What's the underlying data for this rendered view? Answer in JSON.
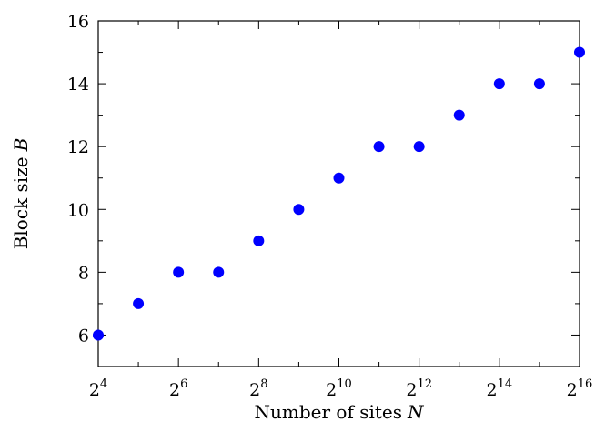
{
  "chart_data": {
    "type": "scatter",
    "xlabel": "Number of sites",
    "xlabel_var": "N",
    "ylabel": "Block size",
    "ylabel_var": "B",
    "x_scale": "log2",
    "x": [
      16,
      32,
      64,
      128,
      256,
      512,
      1024,
      2048,
      4096,
      8192,
      16384,
      32768,
      65536
    ],
    "y": [
      6,
      7,
      8,
      8,
      9,
      10,
      11,
      12,
      12,
      13,
      14,
      14,
      15
    ],
    "xlim": [
      16,
      65536
    ],
    "ylim": [
      5,
      16
    ],
    "x_ticks": [
      {
        "base": "2",
        "exp": "4",
        "value": 16
      },
      {
        "base": "2",
        "exp": "6",
        "value": 64
      },
      {
        "base": "2",
        "exp": "8",
        "value": 256
      },
      {
        "base": "2",
        "exp": "10",
        "value": 1024
      },
      {
        "base": "2",
        "exp": "12",
        "value": 4096
      },
      {
        "base": "2",
        "exp": "14",
        "value": 16384
      },
      {
        "base": "2",
        "exp": "16",
        "value": 65536
      }
    ],
    "y_ticks": [
      "6",
      "8",
      "10",
      "12",
      "14",
      "16"
    ],
    "marker_color": "#0000ff",
    "grid": false,
    "legend": "none"
  }
}
